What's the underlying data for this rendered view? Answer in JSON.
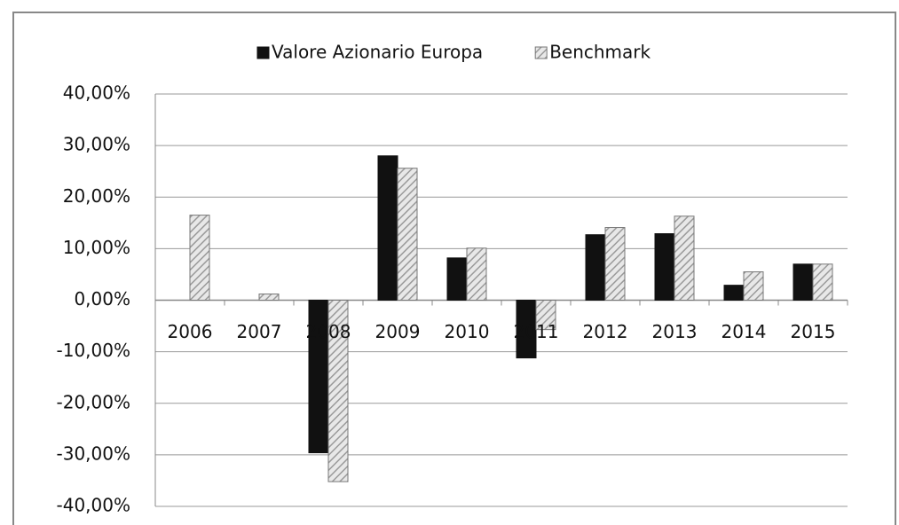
{
  "chart_data": {
    "type": "bar",
    "categories": [
      "2006",
      "2007",
      "2008",
      "2009",
      "2010",
      "2011",
      "2012",
      "2013",
      "2014",
      "2015"
    ],
    "series": [
      {
        "name": "Valore Azionario Europa",
        "color": "#111111",
        "values": [
          null,
          null,
          -29.6,
          28.0,
          8.2,
          -11.2,
          12.7,
          12.9,
          2.9,
          7.0
        ]
      },
      {
        "name": "Benchmark",
        "color": "#9a9a9a",
        "values": [
          16.5,
          1.2,
          -35.2,
          25.6,
          10.1,
          -5.7,
          14.1,
          16.3,
          5.5,
          7.0
        ]
      }
    ],
    "ylim": [
      -40,
      40
    ],
    "yticks": [
      {
        "value": -40,
        "label": "-40,00%"
      },
      {
        "value": -30,
        "label": "-30,00%"
      },
      {
        "value": -20,
        "label": "-20,00%"
      },
      {
        "value": -10,
        "label": "-10,00%"
      },
      {
        "value": 0,
        "label": "0,00%"
      },
      {
        "value": 10,
        "label": "10,00%"
      },
      {
        "value": 20,
        "label": "20,00%"
      },
      {
        "value": 30,
        "label": "30,00%"
      },
      {
        "value": 40,
        "label": "40,00%"
      }
    ],
    "grid": true,
    "legend": "top"
  }
}
